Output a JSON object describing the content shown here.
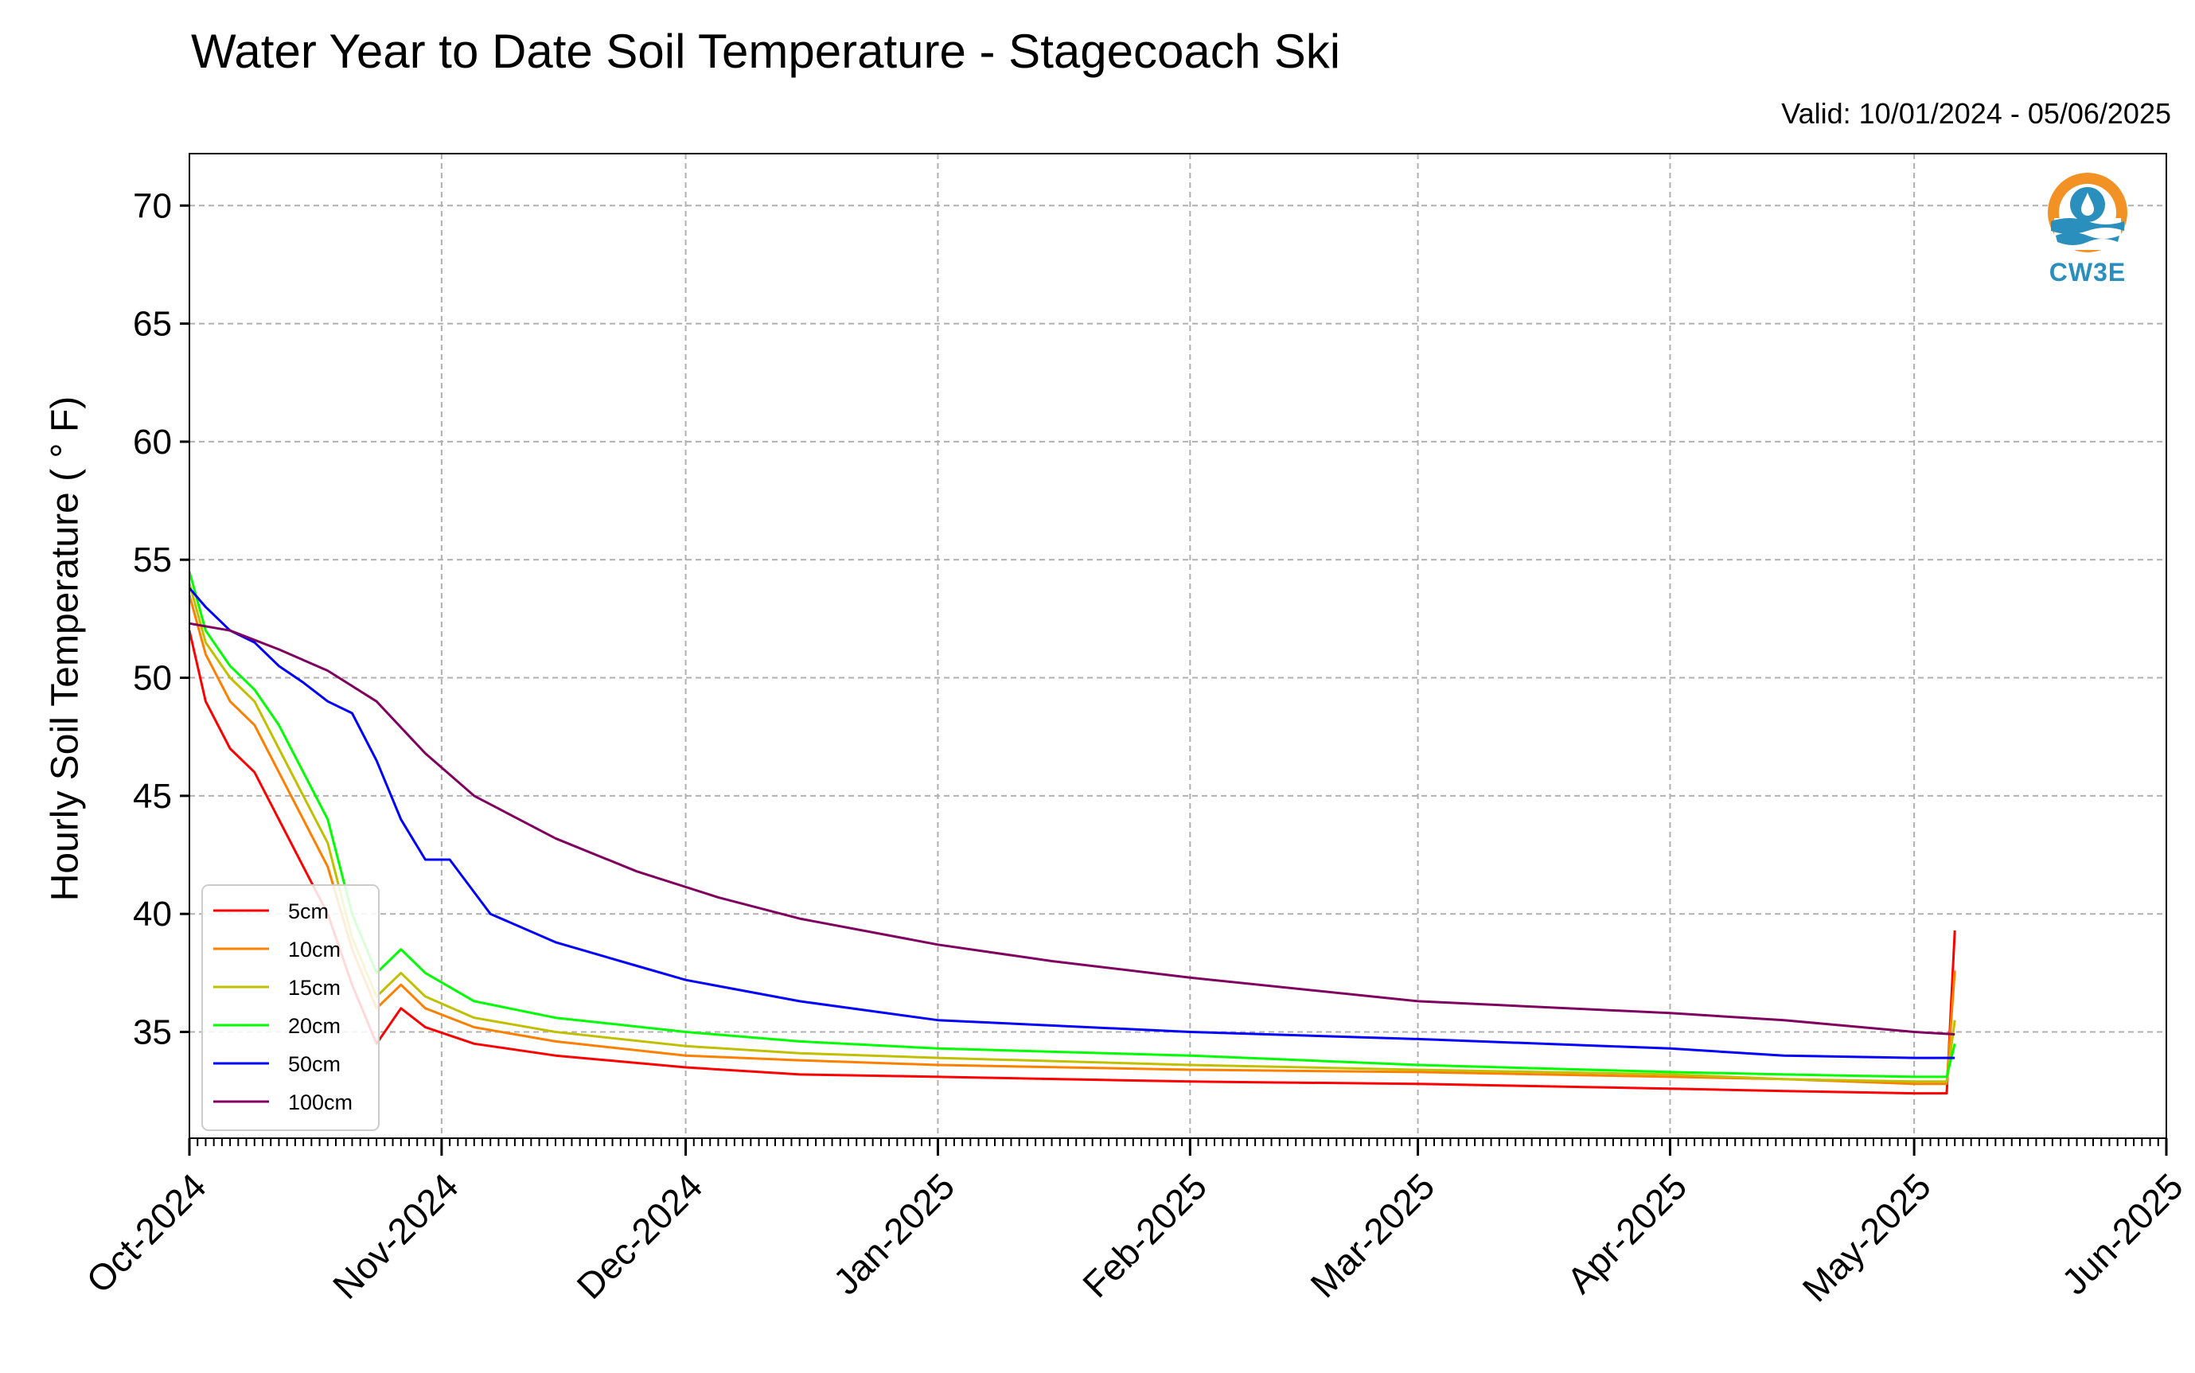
{
  "chart_data": {
    "type": "line",
    "title": "Water Year to Date Soil Temperature - Stagecoach Ski",
    "subtitle": "Valid: 10/01/2024 - 05/06/2025",
    "ylabel": "Hourly Soil Temperature ( ° F)",
    "xlabel": "",
    "xlim": [
      "2024-10-01",
      "2025-06-01"
    ],
    "ylim": [
      30.5,
      72.2
    ],
    "yticks": [
      35,
      40,
      45,
      50,
      55,
      60,
      65,
      70
    ],
    "xticks": [
      "2024-10-01",
      "2024-11-01",
      "2024-12-01",
      "2025-01-01",
      "2025-02-01",
      "2025-03-01",
      "2025-04-01",
      "2025-05-01",
      "2025-06-01"
    ],
    "xticklabels": [
      "Oct-2024",
      "Nov-2024",
      "Dec-2024",
      "Jan-2025",
      "Feb-2025",
      "Mar-2025",
      "Apr-2025",
      "May-2025",
      "Jun-2025"
    ],
    "grid": true,
    "legend_position": "bottom-left",
    "series": [
      {
        "name": "5cm",
        "color": "#ff0000",
        "x": [
          "2024-10-01",
          "2024-10-03",
          "2024-10-06",
          "2024-10-09",
          "2024-10-12",
          "2024-10-15",
          "2024-10-18",
          "2024-10-21",
          "2024-10-24",
          "2024-10-27",
          "2024-10-30",
          "2024-11-05",
          "2024-11-15",
          "2024-12-01",
          "2024-12-15",
          "2025-01-01",
          "2025-02-01",
          "2025-03-01",
          "2025-04-01",
          "2025-04-15",
          "2025-05-01",
          "2025-05-05",
          "2025-05-06"
        ],
        "y": [
          52.0,
          49.0,
          47.0,
          46.0,
          44.0,
          42.0,
          40.0,
          37.0,
          34.5,
          36.0,
          35.2,
          34.5,
          34.0,
          33.5,
          33.2,
          33.1,
          32.9,
          32.8,
          32.6,
          32.5,
          32.4,
          32.4,
          39.3
        ]
      },
      {
        "name": "10cm",
        "color": "#ff8000",
        "x": [
          "2024-10-01",
          "2024-10-03",
          "2024-10-06",
          "2024-10-09",
          "2024-10-12",
          "2024-10-15",
          "2024-10-18",
          "2024-10-21",
          "2024-10-24",
          "2024-10-27",
          "2024-10-30",
          "2024-11-05",
          "2024-11-15",
          "2024-12-01",
          "2024-12-15",
          "2025-01-01",
          "2025-02-01",
          "2025-03-01",
          "2025-04-01",
          "2025-04-15",
          "2025-05-01",
          "2025-05-05",
          "2025-05-06"
        ],
        "y": [
          53.5,
          51.0,
          49.0,
          48.0,
          46.0,
          44.0,
          42.0,
          38.5,
          36.0,
          37.0,
          36.0,
          35.2,
          34.6,
          34.0,
          33.8,
          33.6,
          33.4,
          33.3,
          33.1,
          33.0,
          32.8,
          32.8,
          37.6
        ]
      },
      {
        "name": "15cm",
        "color": "#c0c000",
        "x": [
          "2024-10-01",
          "2024-10-03",
          "2024-10-06",
          "2024-10-09",
          "2024-10-12",
          "2024-10-15",
          "2024-10-18",
          "2024-10-21",
          "2024-10-24",
          "2024-10-27",
          "2024-10-30",
          "2024-11-05",
          "2024-11-15",
          "2024-12-01",
          "2024-12-15",
          "2025-01-01",
          "2025-02-01",
          "2025-03-01",
          "2025-04-01",
          "2025-04-15",
          "2025-05-01",
          "2025-05-05",
          "2025-05-06"
        ],
        "y": [
          54.0,
          51.5,
          50.0,
          49.0,
          47.0,
          45.0,
          43.0,
          39.0,
          36.5,
          37.5,
          36.5,
          35.6,
          35.0,
          34.4,
          34.1,
          33.9,
          33.6,
          33.4,
          33.2,
          33.0,
          32.9,
          32.9,
          35.5
        ]
      },
      {
        "name": "20cm",
        "color": "#00ff00",
        "x": [
          "2024-10-01",
          "2024-10-03",
          "2024-10-06",
          "2024-10-09",
          "2024-10-12",
          "2024-10-15",
          "2024-10-18",
          "2024-10-21",
          "2024-10-24",
          "2024-10-27",
          "2024-10-30",
          "2024-11-05",
          "2024-11-15",
          "2024-12-01",
          "2024-12-15",
          "2025-01-01",
          "2025-02-01",
          "2025-03-01",
          "2025-04-01",
          "2025-04-15",
          "2025-05-01",
          "2025-05-05",
          "2025-05-06"
        ],
        "y": [
          54.5,
          52.0,
          50.5,
          49.5,
          48.0,
          46.0,
          44.0,
          40.0,
          37.5,
          38.5,
          37.5,
          36.3,
          35.6,
          35.0,
          34.6,
          34.3,
          34.0,
          33.6,
          33.3,
          33.2,
          33.1,
          33.1,
          34.5
        ]
      },
      {
        "name": "50cm",
        "color": "#0000ff",
        "x": [
          "2024-10-01",
          "2024-10-03",
          "2024-10-06",
          "2024-10-09",
          "2024-10-12",
          "2024-10-15",
          "2024-10-18",
          "2024-10-21",
          "2024-10-24",
          "2024-10-27",
          "2024-10-30",
          "2024-11-02",
          "2024-11-07",
          "2024-11-15",
          "2024-11-25",
          "2024-12-01",
          "2024-12-15",
          "2025-01-01",
          "2025-02-01",
          "2025-03-01",
          "2025-04-01",
          "2025-04-15",
          "2025-05-01",
          "2025-05-06"
        ],
        "y": [
          53.8,
          53.0,
          52.0,
          51.5,
          50.5,
          49.8,
          49.0,
          48.5,
          46.5,
          44.0,
          42.3,
          42.3,
          40.0,
          38.8,
          37.8,
          37.2,
          36.3,
          35.5,
          35.0,
          34.7,
          34.3,
          34.0,
          33.9,
          33.9
        ]
      },
      {
        "name": "100cm",
        "color": "#800060",
        "x": [
          "2024-10-01",
          "2024-10-06",
          "2024-10-12",
          "2024-10-18",
          "2024-10-24",
          "2024-10-30",
          "2024-11-05",
          "2024-11-15",
          "2024-11-25",
          "2024-12-05",
          "2024-12-15",
          "2025-01-01",
          "2025-01-15",
          "2025-02-01",
          "2025-03-01",
          "2025-04-01",
          "2025-04-15",
          "2025-05-01",
          "2025-05-06"
        ],
        "y": [
          52.3,
          52.0,
          51.2,
          50.3,
          49.0,
          46.8,
          45.0,
          43.2,
          41.8,
          40.7,
          39.8,
          38.7,
          38.0,
          37.3,
          36.3,
          35.8,
          35.5,
          35.0,
          34.9
        ]
      }
    ]
  }
}
